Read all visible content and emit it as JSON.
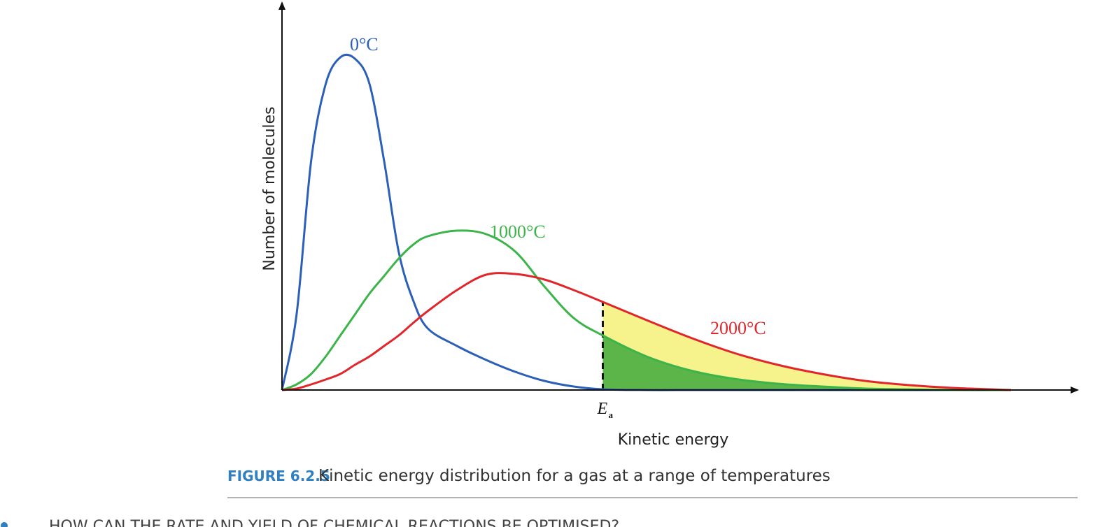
{
  "chart_data": {
    "type": "line",
    "x_label": "Kinetic energy",
    "y_label": "Number of molecules",
    "xlim": [
      0,
      100
    ],
    "ylim": [
      0,
      100
    ],
    "x": [
      0,
      2,
      4,
      6,
      8,
      10,
      12,
      14,
      16,
      18,
      20,
      24,
      28,
      32,
      36,
      40,
      44,
      50,
      56,
      62,
      68,
      74,
      80,
      86,
      92,
      100
    ],
    "series": [
      {
        "name": "0°C",
        "color": "#2b5fb8",
        "values": [
          0,
          21.6,
          65.6,
          87.6,
          95.2,
          94.8,
          87.6,
          65.6,
          39.6,
          25.6,
          17.6,
          12.6,
          8.6,
          5.2,
          2.6,
          1,
          0.2,
          0,
          0,
          0,
          0,
          0,
          0,
          0,
          0,
          0
        ]
      },
      {
        "name": "1000°C",
        "color": "#3cb44a",
        "values": [
          0,
          1.6,
          4.6,
          9.6,
          15.6,
          21.6,
          27.6,
          32.6,
          37.6,
          41.6,
          44,
          45.6,
          44.6,
          39.6,
          29.6,
          20.6,
          15.6,
          9.6,
          5.6,
          3.2,
          1.8,
          1,
          0.4,
          0.2,
          0,
          0
        ]
      },
      {
        "name": "2000°C",
        "color": "#e0262b",
        "values": [
          0,
          0.4,
          1.6,
          3,
          4.6,
          7.2,
          9.6,
          12.6,
          15.6,
          19.2,
          22.6,
          28.6,
          33,
          33.2,
          31.6,
          28.6,
          25.2,
          20,
          15,
          10.6,
          7.2,
          4.6,
          2.6,
          1.4,
          0.6,
          0
        ]
      }
    ],
    "threshold": {
      "x": 44,
      "label": "E",
      "subscript": "a"
    },
    "fill_colors": {
      "above_threshold_hot": "#f6f38c",
      "above_threshold_warm": "#5bb548"
    }
  },
  "figure": {
    "label": "FIGURE 6.2.5",
    "caption": "Kinetic energy distribution for a gas at a range of temperatures"
  },
  "page": {
    "heading": "HOW CAN THE RATE AND YIELD OF CHEMICAL REACTIONS BE OPTIMISED?"
  }
}
